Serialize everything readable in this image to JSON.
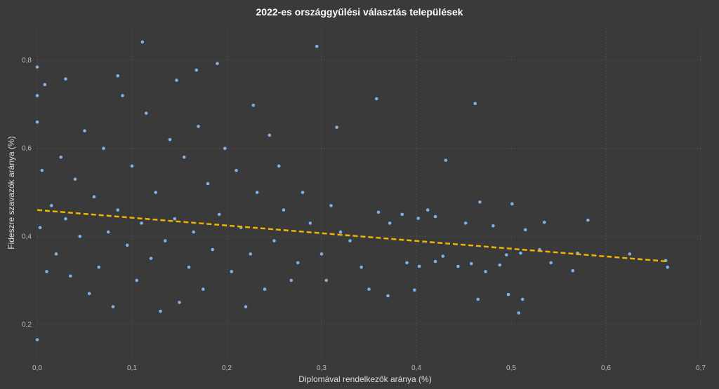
{
  "chart_data": {
    "type": "scatter",
    "title": "2022-es országgyűlési választás települések",
    "xlabel": "Diplomával rendelkezők aránya (%)",
    "ylabel": "Fideszre szavazók aránya (%)",
    "xlim": [
      0,
      0.7
    ],
    "ylim": [
      0.12,
      0.88
    ],
    "x_ticks": [
      "0,0",
      "0,1",
      "0,2",
      "0,3",
      "0,4",
      "0,5",
      "0,6",
      "0,7"
    ],
    "x_tick_values": [
      0,
      0.1,
      0.2,
      0.3,
      0.4,
      0.5,
      0.6,
      0.7
    ],
    "y_ticks": [
      "0,2",
      "0,4",
      "0,6",
      "0,8"
    ],
    "y_tick_values": [
      0.2,
      0.4,
      0.6,
      0.8
    ],
    "grid": true,
    "series": [
      {
        "points": [
          [
            0.0,
            0.785
          ],
          [
            0.0,
            0.72
          ],
          [
            0.0,
            0.66
          ],
          [
            0.0,
            0.165
          ],
          [
            0.008,
            0.745
          ],
          [
            0.111,
            0.842
          ],
          [
            0.295,
            0.832
          ],
          [
            0.19,
            0.793
          ],
          [
            0.168,
            0.778
          ],
          [
            0.085,
            0.765
          ],
          [
            0.03,
            0.758
          ],
          [
            0.147,
            0.755
          ],
          [
            0.462,
            0.702
          ],
          [
            0.358,
            0.713
          ],
          [
            0.228,
            0.698
          ],
          [
            0.316,
            0.648
          ],
          [
            0.431,
            0.573
          ],
          [
            0.581,
            0.437
          ],
          [
            0.535,
            0.432
          ],
          [
            0.515,
            0.415
          ],
          [
            0.501,
            0.474
          ],
          [
            0.481,
            0.424
          ],
          [
            0.467,
            0.478
          ],
          [
            0.452,
            0.43
          ],
          [
            0.42,
            0.445
          ],
          [
            0.412,
            0.46
          ],
          [
            0.402,
            0.441
          ],
          [
            0.385,
            0.45
          ],
          [
            0.372,
            0.43
          ],
          [
            0.36,
            0.455
          ],
          [
            0.665,
            0.33
          ],
          [
            0.663,
            0.345
          ],
          [
            0.625,
            0.36
          ],
          [
            0.57,
            0.362
          ],
          [
            0.565,
            0.322
          ],
          [
            0.542,
            0.34
          ],
          [
            0.53,
            0.37
          ],
          [
            0.51,
            0.362
          ],
          [
            0.495,
            0.358
          ],
          [
            0.488,
            0.335
          ],
          [
            0.512,
            0.257
          ],
          [
            0.508,
            0.226
          ],
          [
            0.497,
            0.268
          ],
          [
            0.473,
            0.32
          ],
          [
            0.465,
            0.257
          ],
          [
            0.458,
            0.338
          ],
          [
            0.444,
            0.332
          ],
          [
            0.428,
            0.355
          ],
          [
            0.42,
            0.343
          ],
          [
            0.403,
            0.332
          ],
          [
            0.398,
            0.278
          ],
          [
            0.39,
            0.34
          ],
          [
            0.37,
            0.265
          ],
          [
            0.35,
            0.28
          ],
          [
            0.342,
            0.33
          ],
          [
            0.33,
            0.39
          ],
          [
            0.32,
            0.41
          ],
          [
            0.31,
            0.47
          ],
          [
            0.305,
            0.3
          ],
          [
            0.3,
            0.36
          ],
          [
            0.288,
            0.43
          ],
          [
            0.28,
            0.5
          ],
          [
            0.275,
            0.34
          ],
          [
            0.268,
            0.3
          ],
          [
            0.26,
            0.46
          ],
          [
            0.255,
            0.56
          ],
          [
            0.25,
            0.39
          ],
          [
            0.245,
            0.63
          ],
          [
            0.24,
            0.28
          ],
          [
            0.232,
            0.5
          ],
          [
            0.225,
            0.36
          ],
          [
            0.22,
            0.24
          ],
          [
            0.215,
            0.42
          ],
          [
            0.21,
            0.55
          ],
          [
            0.205,
            0.32
          ],
          [
            0.198,
            0.6
          ],
          [
            0.192,
            0.45
          ],
          [
            0.185,
            0.37
          ],
          [
            0.18,
            0.52
          ],
          [
            0.175,
            0.28
          ],
          [
            0.17,
            0.65
          ],
          [
            0.165,
            0.41
          ],
          [
            0.16,
            0.33
          ],
          [
            0.155,
            0.58
          ],
          [
            0.15,
            0.25
          ],
          [
            0.145,
            0.44
          ],
          [
            0.14,
            0.62
          ],
          [
            0.135,
            0.39
          ],
          [
            0.13,
            0.23
          ],
          [
            0.125,
            0.5
          ],
          [
            0.12,
            0.35
          ],
          [
            0.115,
            0.68
          ],
          [
            0.11,
            0.43
          ],
          [
            0.105,
            0.3
          ],
          [
            0.1,
            0.56
          ],
          [
            0.095,
            0.38
          ],
          [
            0.09,
            0.72
          ],
          [
            0.085,
            0.46
          ],
          [
            0.08,
            0.24
          ],
          [
            0.075,
            0.41
          ],
          [
            0.07,
            0.6
          ],
          [
            0.065,
            0.33
          ],
          [
            0.06,
            0.49
          ],
          [
            0.055,
            0.27
          ],
          [
            0.05,
            0.64
          ],
          [
            0.045,
            0.4
          ],
          [
            0.04,
            0.53
          ],
          [
            0.035,
            0.31
          ],
          [
            0.03,
            0.44
          ],
          [
            0.025,
            0.58
          ],
          [
            0.02,
            0.36
          ],
          [
            0.015,
            0.47
          ],
          [
            0.01,
            0.32
          ],
          [
            0.005,
            0.55
          ],
          [
            0.003,
            0.42
          ]
        ]
      }
    ],
    "point_color": "#7fb0e6",
    "trendline": {
      "style": "dashed",
      "color": "#f0b400",
      "x": [
        0,
        0.665
      ],
      "y": [
        0.46,
        0.343
      ]
    },
    "background_color": "#3a3a3a"
  }
}
